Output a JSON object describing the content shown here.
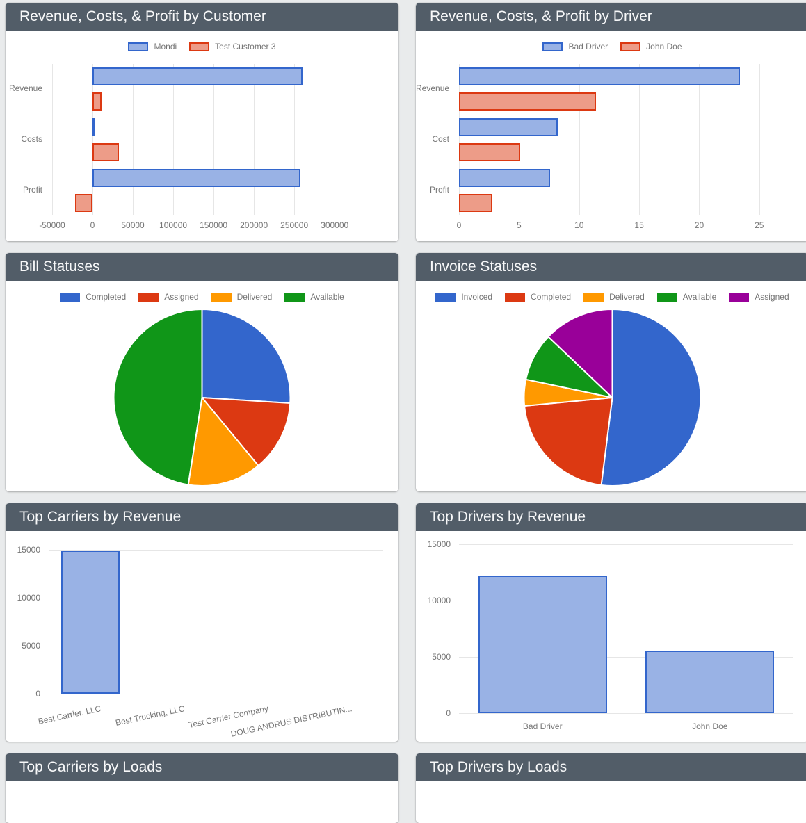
{
  "theme": {
    "page_bg": "#e9ebec",
    "panel_header_bg": "#525d68",
    "panel_header_text": "#f7f8f9",
    "axis_text_color": "#757575",
    "gridline_color": "#e6e6e6",
    "bar_blue_border": "#3366cc",
    "bar_blue_fill": "#99b2e5",
    "bar_red_border": "#dc3912",
    "bar_red_fill": "#ed9c88"
  },
  "chart_data": [
    {
      "type": "bar",
      "orientation": "horizontal",
      "title": "Revenue, Costs, & Profit by Customer",
      "categories": [
        "Revenue",
        "Costs",
        "Profit"
      ],
      "series": [
        {
          "name": "Mondi",
          "color": "#3366cc",
          "fill": "#99b2e5",
          "values": [
            260000,
            2000,
            258000
          ]
        },
        {
          "name": "Test Customer 3",
          "color": "#dc3912",
          "fill": "#ed9c88",
          "values": [
            11000,
            33000,
            -21500
          ]
        }
      ],
      "xlim": [
        -50000,
        355000
      ],
      "xticks": [
        -50000,
        0,
        50000,
        100000,
        150000,
        200000,
        250000,
        300000
      ],
      "legend_position": "top",
      "grid": true
    },
    {
      "type": "bar",
      "orientation": "horizontal",
      "title": "Revenue, Costs, & Profit by Driver",
      "categories": [
        "Revenue",
        "Cost",
        "Profit"
      ],
      "series": [
        {
          "name": "Bad Driver",
          "color": "#3366cc",
          "fill": "#99b2e5",
          "values": [
            23.4,
            8.2,
            7.6
          ]
        },
        {
          "name": "John Doe",
          "color": "#dc3912",
          "fill": "#ed9c88",
          "values": [
            11.4,
            5.1,
            2.8
          ]
        }
      ],
      "xlim": [
        0,
        27.5
      ],
      "xticks": [
        0,
        5,
        10,
        15,
        20,
        25
      ],
      "legend_position": "top",
      "grid": true
    },
    {
      "type": "pie",
      "title": "Bill Statuses",
      "labels": [
        "Completed",
        "Assigned",
        "Delivered",
        "Available"
      ],
      "values": [
        26,
        13,
        13.5,
        47.5
      ],
      "colors": [
        "#3366cc",
        "#dc3912",
        "#ff9900",
        "#109618"
      ],
      "legend_position": "top"
    },
    {
      "type": "pie",
      "title": "Invoice Statuses",
      "labels": [
        "Invoiced",
        "Completed",
        "Delivered",
        "Available",
        "Assigned"
      ],
      "values": [
        52,
        21.5,
        4.8,
        8.8,
        12.9
      ],
      "colors": [
        "#3366cc",
        "#dc3912",
        "#ff9900",
        "#109618",
        "#990099"
      ],
      "legend_position": "top"
    },
    {
      "type": "bar",
      "orientation": "vertical",
      "title": "Top Carriers by Revenue",
      "categories": [
        "Best Carrier, LLC",
        "Best Trucking, LLC",
        "Test Carrier Company",
        "DOUG ANDRUS DISTRIBUTIN..."
      ],
      "values": [
        14950,
        0,
        0,
        0
      ],
      "color": "#3366cc",
      "fill": "#99b2e5",
      "ylim": [
        0,
        15000
      ],
      "yticks": [
        0,
        5000,
        10000,
        15000
      ],
      "label_rotation": -12,
      "bar_fraction": 0.7,
      "grid": true
    },
    {
      "type": "bar",
      "orientation": "vertical",
      "title": "Top Drivers by Revenue",
      "categories": [
        "Bad Driver",
        "John Doe"
      ],
      "values": [
        12200,
        5550
      ],
      "color": "#3366cc",
      "fill": "#99b2e5",
      "ylim": [
        0,
        15000
      ],
      "yticks": [
        0,
        5000,
        10000,
        15000
      ],
      "label_rotation": 0,
      "bar_fraction": 0.77,
      "grid": true
    }
  ],
  "partial_panels": [
    {
      "title": "Top Carriers by Loads"
    },
    {
      "title": "Top Drivers by Loads"
    }
  ]
}
